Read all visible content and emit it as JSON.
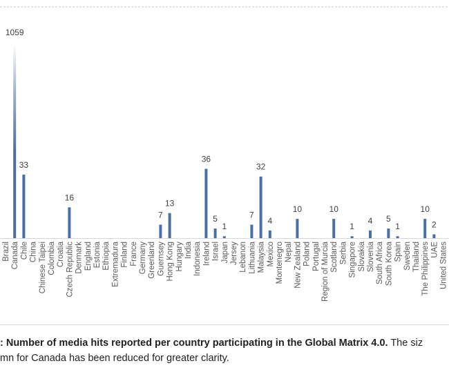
{
  "chart_data": {
    "type": "bar",
    "title": "",
    "xlabel": "",
    "ylabel": "",
    "bar_color": "#4a6fa5",
    "grid": false,
    "truncated_category": "Canada",
    "categories": [
      "Brazil",
      "Canada",
      "Chile",
      "China",
      "Chinese Taipei",
      "Colombia",
      "Croatia",
      "Czech Republic",
      "Denmark",
      "England",
      "Estonia",
      "Ethiopia",
      "Extremadura",
      "Finland",
      "France",
      "Germany",
      "Greenland",
      "Guernsey",
      "Hong Kong",
      "Hungary",
      "India",
      "Indonesia",
      "Ireland",
      "Israel",
      "Japan",
      "Jersey",
      "Lebanon",
      "Lithuania",
      "Malaysia",
      "Mexico",
      "Montenegro",
      "Nepal",
      "New Zealand",
      "Poland",
      "Portugal",
      "Region of Murcia",
      "Scotland",
      "Serbia",
      "Singapore",
      "Slovakia",
      "Slovenia",
      "South Africa",
      "South Korea",
      "Spain",
      "Sweden",
      "Thailand",
      "The Philippines",
      "UAE",
      "United States"
    ],
    "values": [
      0,
      1059,
      33,
      0,
      0,
      0,
      0,
      16,
      0,
      0,
      0,
      0,
      0,
      0,
      0,
      0,
      0,
      7,
      13,
      0,
      0,
      0,
      36,
      5,
      1,
      0,
      0,
      7,
      32,
      4,
      0,
      0,
      10,
      0,
      0,
      0,
      10,
      0,
      1,
      0,
      4,
      0,
      5,
      1,
      0,
      0,
      10,
      2,
      0
    ],
    "data_labels": [
      null,
      "1059",
      "33",
      null,
      null,
      null,
      null,
      "16",
      null,
      null,
      null,
      null,
      null,
      null,
      null,
      null,
      null,
      "7",
      "13",
      null,
      null,
      null,
      "36",
      "5",
      "1",
      null,
      null,
      "7",
      "32",
      "4",
      null,
      null,
      "10",
      null,
      null,
      null,
      "10",
      null,
      "1",
      null,
      "4",
      null,
      "5",
      "1",
      null,
      null,
      "10",
      "2",
      null
    ],
    "ylim": [
      0,
      40
    ]
  },
  "caption": {
    "bold": ": Number of media hits reported per country participating in the Global Matrix 4.0.",
    "normal": " The siz",
    "line2": "mn for Canada has been reduced for greater clarity."
  }
}
